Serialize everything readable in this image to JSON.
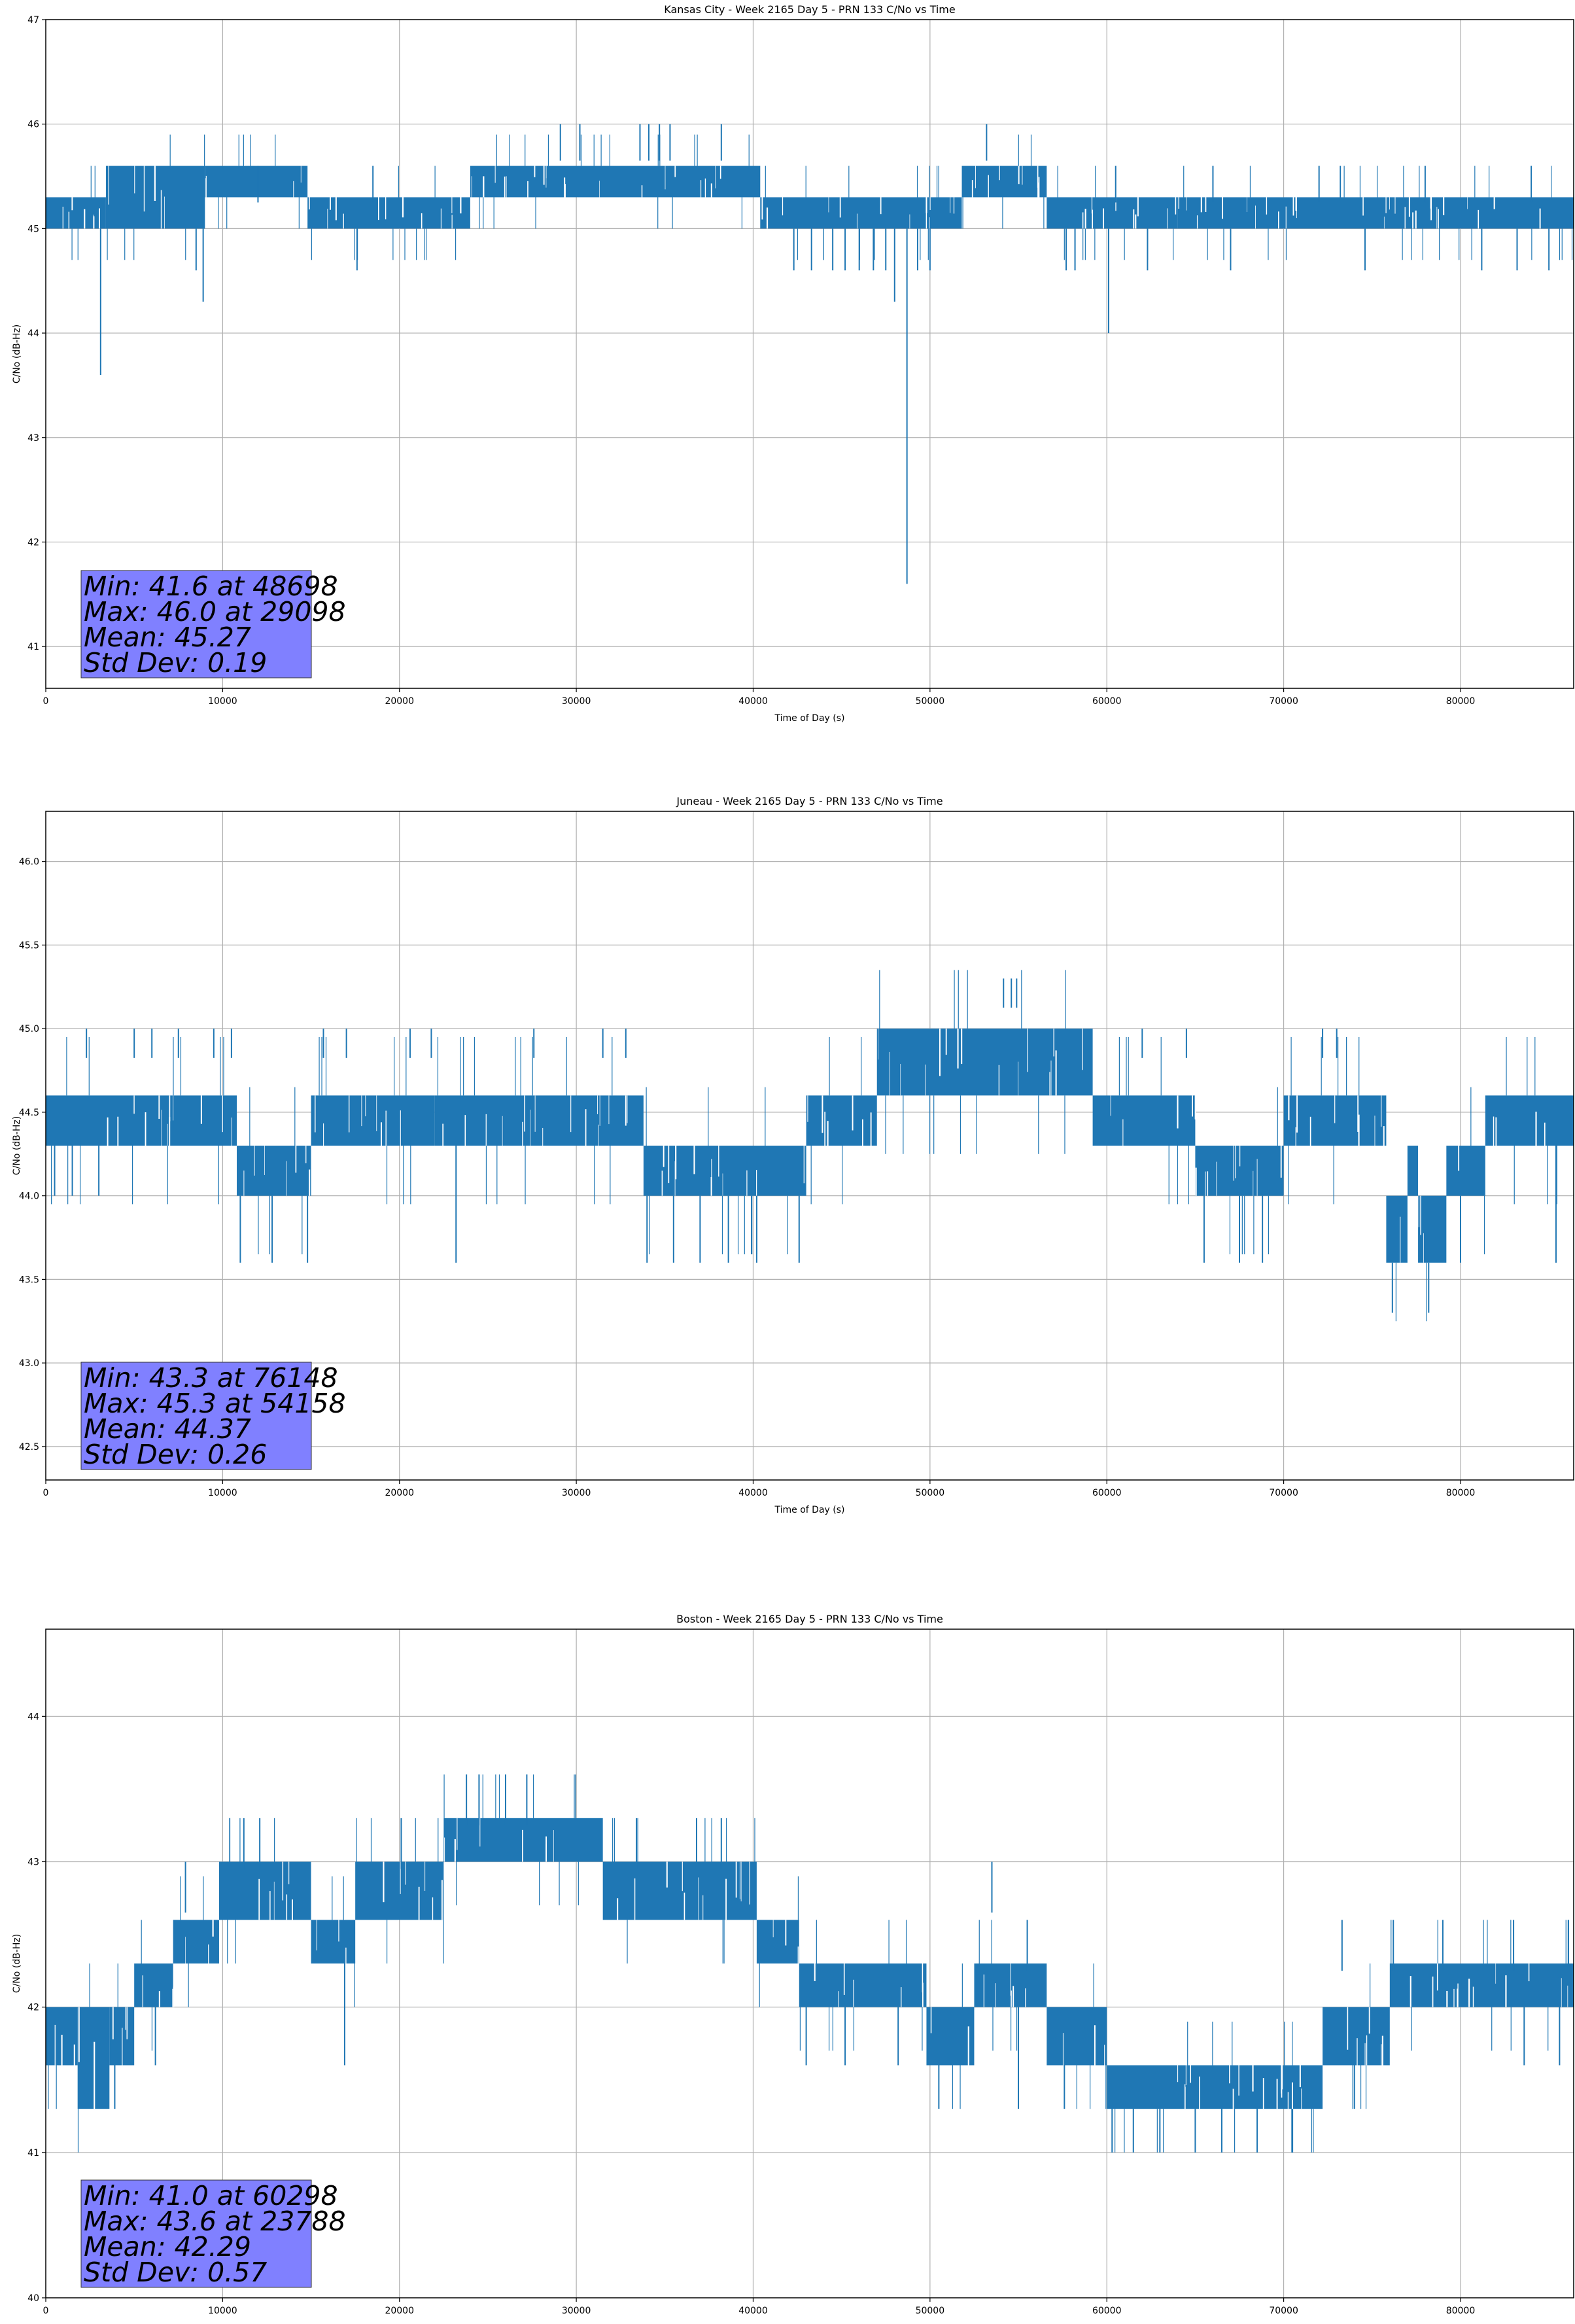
{
  "chart_data": [
    {
      "type": "line",
      "title": "Kansas City - Week 2165 Day 5 - PRN 133 C/No vs Time",
      "xlabel": "Time of Day (s)",
      "ylabel": "C/No (dB-Hz)",
      "xlim": [
        0,
        86400
      ],
      "ylim": [
        40.6,
        47.0
      ],
      "xticks": [
        0,
        10000,
        20000,
        30000,
        40000,
        50000,
        60000,
        70000,
        80000
      ],
      "yticks": [
        41,
        42,
        43,
        44,
        45,
        46,
        47
      ],
      "ytick_labels": [
        "41",
        "42",
        "43",
        "44",
        "45",
        "46",
        "47"
      ],
      "grid": true,
      "line_color": "#1f77b4",
      "stats": {
        "lines": [
          "Min: 41.6 at 48698",
          "Max: 46.0 at 29098",
          "Mean: 45.27",
          "Std Dev: 0.19"
        ],
        "box_color": "#8080ff"
      },
      "series": [
        {
          "bands": [
            {
              "x": [
                0,
                3400
              ],
              "low": 45.0,
              "high": 45.3
            },
            {
              "x": [
                3400,
                9000
              ],
              "low": 45.0,
              "high": 45.6
            },
            {
              "x": [
                9000,
                14800
              ],
              "low": 45.3,
              "high": 45.6
            },
            {
              "x": [
                14800,
                24000
              ],
              "low": 45.0,
              "high": 45.3
            },
            {
              "x": [
                24000,
                40400
              ],
              "low": 45.3,
              "high": 45.6
            },
            {
              "x": [
                40400,
                51800
              ],
              "low": 45.0,
              "high": 45.3
            },
            {
              "x": [
                51800,
                56600
              ],
              "low": 45.3,
              "high": 45.6
            },
            {
              "x": [
                56600,
                64000
              ],
              "low": 45.0,
              "high": 45.3
            },
            {
              "x": [
                64000,
                86400
              ],
              "low": 45.0,
              "high": 45.3
            }
          ],
          "spikes_up": [
            {
              "x": 29098,
              "y": 46.0
            },
            {
              "x": 30200,
              "y": 46.0
            },
            {
              "x": 33600,
              "y": 46.0
            },
            {
              "x": 34100,
              "y": 46.0
            },
            {
              "x": 34700,
              "y": 46.0
            },
            {
              "x": 35300,
              "y": 46.0
            },
            {
              "x": 38200,
              "y": 46.0
            },
            {
              "x": 53200,
              "y": 46.0
            },
            {
              "x": 12000,
              "y": 45.6
            },
            {
              "x": 18500,
              "y": 45.6
            },
            {
              "x": 60500,
              "y": 45.6
            },
            {
              "x": 66000,
              "y": 45.6
            },
            {
              "x": 72000,
              "y": 45.6
            },
            {
              "x": 78000,
              "y": 45.6
            },
            {
              "x": 84000,
              "y": 45.6
            }
          ],
          "spikes_down": [
            {
              "x": 3100,
              "y": 43.6
            },
            {
              "x": 8500,
              "y": 44.6
            },
            {
              "x": 8900,
              "y": 44.3
            },
            {
              "x": 17600,
              "y": 44.6
            },
            {
              "x": 42300,
              "y": 44.6
            },
            {
              "x": 43300,
              "y": 44.6
            },
            {
              "x": 44500,
              "y": 44.6
            },
            {
              "x": 45200,
              "y": 44.6
            },
            {
              "x": 46000,
              "y": 44.6
            },
            {
              "x": 46800,
              "y": 44.6
            },
            {
              "x": 47500,
              "y": 44.6
            },
            {
              "x": 48000,
              "y": 44.3
            },
            {
              "x": 48698,
              "y": 41.6
            },
            {
              "x": 49300,
              "y": 44.6
            },
            {
              "x": 50000,
              "y": 44.6
            },
            {
              "x": 57700,
              "y": 44.6
            },
            {
              "x": 58200,
              "y": 44.6
            },
            {
              "x": 60100,
              "y": 44.0
            },
            {
              "x": 62300,
              "y": 44.6
            },
            {
              "x": 67000,
              "y": 44.6
            },
            {
              "x": 74600,
              "y": 44.6
            },
            {
              "x": 81200,
              "y": 44.6
            },
            {
              "x": 83200,
              "y": 44.6
            },
            {
              "x": 85000,
              "y": 44.6
            }
          ]
        }
      ]
    },
    {
      "type": "line",
      "title": "Juneau - Week 2165 Day 5 - PRN 133 C/No vs Time",
      "xlabel": "Time of Day (s)",
      "ylabel": "C/No (dB-Hz)",
      "xlim": [
        0,
        86400
      ],
      "ylim": [
        42.3,
        46.3
      ],
      "xticks": [
        0,
        10000,
        20000,
        30000,
        40000,
        50000,
        60000,
        70000,
        80000
      ],
      "yticks": [
        42.5,
        43.0,
        43.5,
        44.0,
        44.5,
        45.0,
        45.5,
        46.0
      ],
      "ytick_labels": [
        "42.5",
        "43.0",
        "43.5",
        "44.0",
        "44.5",
        "45.0",
        "45.5",
        "46.0"
      ],
      "grid": true,
      "line_color": "#1f77b4",
      "stats": {
        "lines": [
          "Min: 43.3 at 76148",
          "Max: 45.3 at 54158",
          "Mean: 44.37",
          "Std Dev: 0.26"
        ],
        "box_color": "#8080ff"
      },
      "series": [
        {
          "bands": [
            {
              "x": [
                0,
                10800
              ],
              "low": 44.3,
              "high": 44.6
            },
            {
              "x": [
                10800,
                15000
              ],
              "low": 44.0,
              "high": 44.3
            },
            {
              "x": [
                15000,
                22000
              ],
              "low": 44.3,
              "high": 44.6
            },
            {
              "x": [
                22000,
                33800
              ],
              "low": 44.3,
              "high": 44.6
            },
            {
              "x": [
                33800,
                43000
              ],
              "low": 44.0,
              "high": 44.3
            },
            {
              "x": [
                43000,
                47000
              ],
              "low": 44.3,
              "high": 44.6
            },
            {
              "x": [
                47000,
                59200
              ],
              "low": 44.6,
              "high": 45.0
            },
            {
              "x": [
                59200,
                65000
              ],
              "low": 44.3,
              "high": 44.6
            },
            {
              "x": [
                65000,
                70000
              ],
              "low": 44.0,
              "high": 44.3
            },
            {
              "x": [
                70000,
                75800
              ],
              "low": 44.3,
              "high": 44.6
            },
            {
              "x": [
                75800,
                77000
              ],
              "low": 43.6,
              "high": 44.0
            },
            {
              "x": [
                77000,
                77600
              ],
              "low": 44.0,
              "high": 44.3
            },
            {
              "x": [
                77600,
                79200
              ],
              "low": 43.6,
              "high": 44.0
            },
            {
              "x": [
                79200,
                81400
              ],
              "low": 44.0,
              "high": 44.3
            },
            {
              "x": [
                81400,
                86400
              ],
              "low": 44.3,
              "high": 44.6
            }
          ],
          "spikes_up": [
            {
              "x": 2300,
              "y": 45.0
            },
            {
              "x": 5000,
              "y": 45.0
            },
            {
              "x": 6000,
              "y": 45.0
            },
            {
              "x": 7500,
              "y": 45.0
            },
            {
              "x": 9500,
              "y": 45.0
            },
            {
              "x": 10500,
              "y": 45.0
            },
            {
              "x": 15700,
              "y": 45.0
            },
            {
              "x": 17000,
              "y": 45.0
            },
            {
              "x": 20600,
              "y": 45.0
            },
            {
              "x": 21800,
              "y": 45.0
            },
            {
              "x": 27600,
              "y": 45.0
            },
            {
              "x": 31500,
              "y": 45.0
            },
            {
              "x": 32800,
              "y": 45.0
            },
            {
              "x": 54158,
              "y": 45.3
            },
            {
              "x": 54600,
              "y": 45.3
            },
            {
              "x": 54900,
              "y": 45.3
            },
            {
              "x": 62000,
              "y": 45.0
            },
            {
              "x": 64500,
              "y": 45.0
            },
            {
              "x": 72200,
              "y": 45.0
            },
            {
              "x": 73000,
              "y": 45.0
            }
          ],
          "spikes_down": [
            {
              "x": 500,
              "y": 44.0
            },
            {
              "x": 1500,
              "y": 44.0
            },
            {
              "x": 3000,
              "y": 44.0
            },
            {
              "x": 11000,
              "y": 43.6
            },
            {
              "x": 12800,
              "y": 43.6
            },
            {
              "x": 14800,
              "y": 43.6
            },
            {
              "x": 23200,
              "y": 43.6
            },
            {
              "x": 34000,
              "y": 43.6
            },
            {
              "x": 35500,
              "y": 43.6
            },
            {
              "x": 37000,
              "y": 43.6
            },
            {
              "x": 38600,
              "y": 43.6
            },
            {
              "x": 40200,
              "y": 43.6
            },
            {
              "x": 42600,
              "y": 43.6
            },
            {
              "x": 65500,
              "y": 43.6
            },
            {
              "x": 67500,
              "y": 43.6
            },
            {
              "x": 68800,
              "y": 43.6
            },
            {
              "x": 76148,
              "y": 43.3
            },
            {
              "x": 78200,
              "y": 43.3
            },
            {
              "x": 80000,
              "y": 43.6
            },
            {
              "x": 85400,
              "y": 43.6
            }
          ]
        }
      ]
    },
    {
      "type": "line",
      "title": "Boston - Week 2165 Day 5 - PRN 133 C/No vs Time",
      "xlabel": "Time of Day (s)",
      "ylabel": "C/No (dB-Hz)",
      "xlim": [
        0,
        86400
      ],
      "ylim": [
        40.0,
        44.6
      ],
      "xticks": [
        0,
        10000,
        20000,
        30000,
        40000,
        50000,
        60000,
        70000,
        80000
      ],
      "yticks": [
        40,
        41,
        42,
        43,
        44
      ],
      "ytick_labels": [
        "40",
        "41",
        "42",
        "43",
        "44"
      ],
      "grid": true,
      "line_color": "#1f77b4",
      "stats": {
        "lines": [
          "Min: 41.0 at 60298",
          "Max: 43.6 at 23788",
          "Mean: 42.29",
          "Std Dev: 0.57"
        ],
        "box_color": "#8080ff"
      },
      "series": [
        {
          "bands": [
            {
              "x": [
                0,
                1800
              ],
              "low": 41.6,
              "high": 42.0
            },
            {
              "x": [
                1800,
                3600
              ],
              "low": 41.3,
              "high": 42.0
            },
            {
              "x": [
                3600,
                5000
              ],
              "low": 41.6,
              "high": 42.0
            },
            {
              "x": [
                5000,
                7200
              ],
              "low": 42.0,
              "high": 42.3
            },
            {
              "x": [
                7200,
                9800
              ],
              "low": 42.3,
              "high": 42.6
            },
            {
              "x": [
                9800,
                15000
              ],
              "low": 42.6,
              "high": 43.0
            },
            {
              "x": [
                15000,
                17500
              ],
              "low": 42.3,
              "high": 42.6
            },
            {
              "x": [
                17500,
                22500
              ],
              "low": 42.6,
              "high": 43.0
            },
            {
              "x": [
                22500,
                31500
              ],
              "low": 43.0,
              "high": 43.3
            },
            {
              "x": [
                31500,
                40200
              ],
              "low": 42.6,
              "high": 43.0
            },
            {
              "x": [
                40200,
                42600
              ],
              "low": 42.3,
              "high": 42.6
            },
            {
              "x": [
                42600,
                49800
              ],
              "low": 42.0,
              "high": 42.3
            },
            {
              "x": [
                49800,
                52500
              ],
              "low": 41.6,
              "high": 42.0
            },
            {
              "x": [
                52500,
                56600
              ],
              "low": 42.0,
              "high": 42.3
            },
            {
              "x": [
                56600,
                60000
              ],
              "low": 41.6,
              "high": 42.0
            },
            {
              "x": [
                60000,
                72200
              ],
              "low": 41.3,
              "high": 41.6
            },
            {
              "x": [
                72200,
                76000
              ],
              "low": 41.6,
              "high": 42.0
            },
            {
              "x": [
                76000,
                86400
              ],
              "low": 42.0,
              "high": 42.3
            }
          ],
          "spikes_up": [
            {
              "x": 7900,
              "y": 43.0
            },
            {
              "x": 11200,
              "y": 43.3
            },
            {
              "x": 12100,
              "y": 43.3
            },
            {
              "x": 20100,
              "y": 43.3
            },
            {
              "x": 23788,
              "y": 43.6
            },
            {
              "x": 24500,
              "y": 43.6
            },
            {
              "x": 26000,
              "y": 43.6
            },
            {
              "x": 27200,
              "y": 43.6
            },
            {
              "x": 33400,
              "y": 43.3
            },
            {
              "x": 36800,
              "y": 43.3
            },
            {
              "x": 38200,
              "y": 43.3
            },
            {
              "x": 53500,
              "y": 43.0
            },
            {
              "x": 55500,
              "y": 42.6
            },
            {
              "x": 73300,
              "y": 42.6
            },
            {
              "x": 76200,
              "y": 42.6
            },
            {
              "x": 79000,
              "y": 42.6
            },
            {
              "x": 83000,
              "y": 42.6
            }
          ],
          "spikes_down": [
            {
              "x": 3900,
              "y": 41.3
            },
            {
              "x": 6200,
              "y": 41.6
            },
            {
              "x": 16900,
              "y": 41.6
            },
            {
              "x": 43000,
              "y": 41.6
            },
            {
              "x": 45200,
              "y": 41.6
            },
            {
              "x": 48200,
              "y": 41.6
            },
            {
              "x": 50500,
              "y": 41.3
            },
            {
              "x": 55000,
              "y": 41.3
            },
            {
              "x": 57600,
              "y": 41.3
            },
            {
              "x": 60298,
              "y": 41.0
            },
            {
              "x": 61500,
              "y": 41.0
            },
            {
              "x": 63000,
              "y": 41.0
            },
            {
              "x": 65000,
              "y": 41.0
            },
            {
              "x": 66500,
              "y": 41.0
            },
            {
              "x": 68500,
              "y": 41.0
            },
            {
              "x": 70500,
              "y": 41.0
            },
            {
              "x": 74000,
              "y": 41.3
            },
            {
              "x": 83600,
              "y": 41.6
            },
            {
              "x": 85600,
              "y": 41.6
            }
          ]
        }
      ]
    }
  ]
}
